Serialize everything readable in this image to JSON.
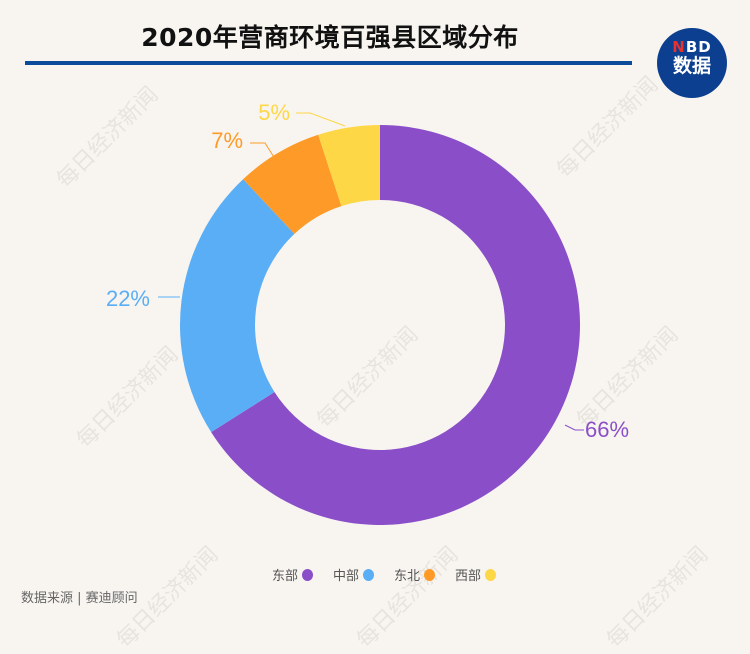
{
  "header": {
    "title": "2020年营商环境百强县区域分布",
    "logo_line1_accent": "N",
    "logo_line1_rest": "BD",
    "logo_line2": "数据"
  },
  "watermark": "每日经济新闻",
  "chart_data": {
    "type": "pie",
    "subtype": "donut",
    "title": "2020年营商环境百强县区域分布",
    "categories": [
      "东部",
      "中部",
      "东北",
      "西部"
    ],
    "values": [
      66,
      22,
      7,
      5
    ],
    "labels": [
      "66%",
      "22%",
      "7%",
      "5%"
    ],
    "colors": [
      "#8a4fc8",
      "#5aaef5",
      "#fe9a28",
      "#fed746"
    ],
    "legend_position": "bottom",
    "start_angle": "12 o'clock, clockwise"
  },
  "legend": [
    {
      "label": "东部",
      "color": "#8a4fc8"
    },
    {
      "label": "中部",
      "color": "#5aaef5"
    },
    {
      "label": "东北",
      "color": "#fe9a28"
    },
    {
      "label": "西部",
      "color": "#fed746"
    }
  ],
  "footer": {
    "source": "数据来源 | 赛迪顾问"
  }
}
